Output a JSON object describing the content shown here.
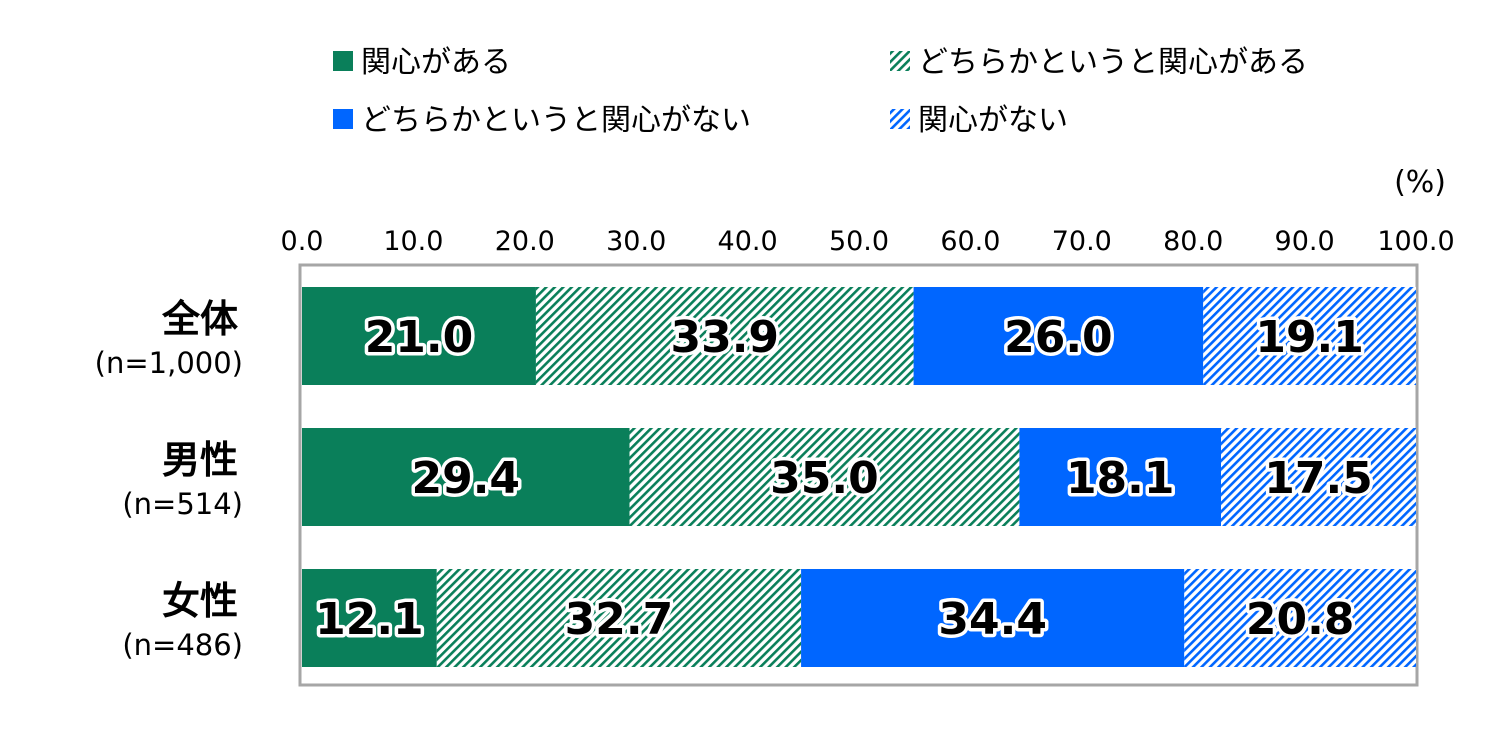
{
  "chart_data": {
    "type": "bar",
    "orientation": "horizontal",
    "stacked": true,
    "unit_label": "(%)",
    "xlim": [
      0,
      100
    ],
    "x_ticks": [
      "0.0",
      "10.0",
      "20.0",
      "30.0",
      "40.0",
      "50.0",
      "60.0",
      "70.0",
      "80.0",
      "90.0",
      "100.0"
    ],
    "categories": [
      {
        "label": "全体",
        "n": "(n=1,000)"
      },
      {
        "label": "男性",
        "n": "(n=514)"
      },
      {
        "label": "女性",
        "n": "(n=486)"
      }
    ],
    "series": [
      {
        "name": "関心がある",
        "color": "#0a7f5a",
        "pattern": "solid",
        "values": [
          21.0,
          29.4,
          12.1
        ]
      },
      {
        "name": "どちらかというと関心がある",
        "color": "#0a7f5a",
        "pattern": "hatch",
        "values": [
          33.9,
          35.0,
          32.7
        ]
      },
      {
        "name": "どちらかというと関心がない",
        "color": "#0066ff",
        "pattern": "solid",
        "values": [
          26.0,
          18.1,
          34.4
        ]
      },
      {
        "name": "関心がない",
        "color": "#0066ff",
        "pattern": "hatch",
        "values": [
          19.1,
          17.5,
          20.8
        ]
      }
    ],
    "legend_position": "top",
    "grid": false
  }
}
